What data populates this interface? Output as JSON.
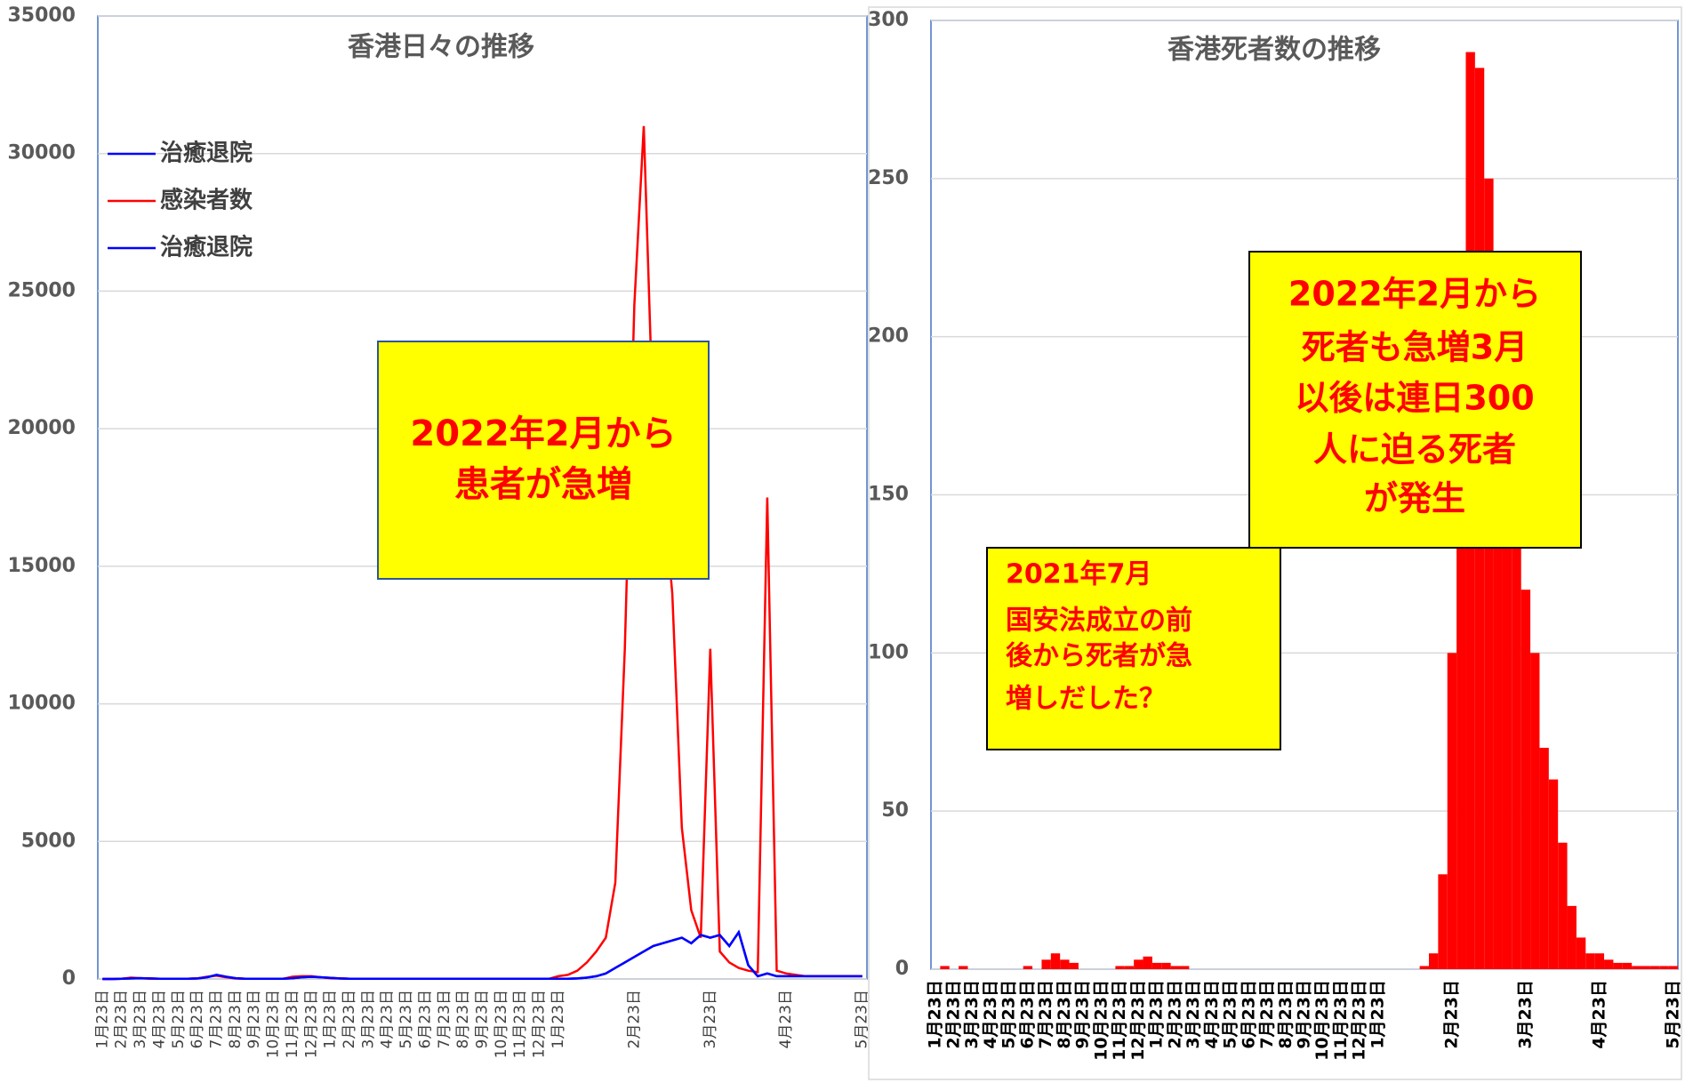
{
  "chart_data": [
    {
      "type": "line",
      "title": "香港日々の推移",
      "categories": [
        "1月23日",
        null,
        "2月23日",
        null,
        "3月23日",
        null,
        "4月23日",
        null,
        "5月23日",
        null,
        "6月23日",
        null,
        "7月23日",
        null,
        "8月23日",
        null,
        "9月23日",
        null,
        "10月23日",
        null,
        "11月23日",
        null,
        "12月23日",
        null,
        "1月23日",
        null,
        "2月23日",
        null,
        "3月23日",
        null,
        "4月23日",
        null,
        "5月23日",
        null,
        "6月23日",
        null,
        "7月23日",
        null,
        "8月23日",
        null,
        "9月23日",
        null,
        "10月23日",
        null,
        "11月23日",
        null,
        "12月23日",
        null,
        "1月23日",
        null,
        null,
        null,
        null,
        null,
        null,
        null,
        "2月23日",
        null,
        null,
        null,
        null,
        null,
        null,
        null,
        "3月23日",
        null,
        null,
        null,
        null,
        null,
        null,
        null,
        "4月23日",
        null,
        null,
        null,
        null,
        null,
        null,
        null,
        "5月23日"
      ],
      "series": [
        {
          "name": "治癒退院",
          "color": "#0000ff",
          "values": [
            0,
            0,
            10,
            20,
            30,
            20,
            10,
            10,
            10,
            10,
            20,
            60,
            150,
            80,
            30,
            10,
            5,
            5,
            5,
            5,
            30,
            60,
            80,
            60,
            40,
            20,
            10,
            5,
            5,
            5,
            5,
            5,
            5,
            5,
            5,
            5,
            5,
            5,
            5,
            5,
            5,
            5,
            5,
            5,
            5,
            5,
            5,
            5,
            10,
            10,
            20,
            50,
            100,
            200,
            400,
            600,
            800,
            1000,
            1200,
            1300,
            1400,
            1500,
            1300,
            1600,
            1500,
            1600,
            1200,
            1700,
            500,
            100,
            200,
            100,
            100,
            100,
            100,
            100,
            100,
            100,
            100,
            100,
            100
          ]
        },
        {
          "name": "感染者数",
          "color": "#ff0000",
          "values": [
            0,
            0,
            10,
            50,
            30,
            10,
            5,
            5,
            5,
            5,
            20,
            80,
            120,
            60,
            20,
            10,
            5,
            5,
            5,
            5,
            80,
            100,
            100,
            60,
            30,
            20,
            10,
            5,
            5,
            5,
            5,
            5,
            5,
            5,
            5,
            5,
            5,
            5,
            5,
            5,
            5,
            5,
            5,
            5,
            5,
            5,
            5,
            5,
            100,
            150,
            300,
            600,
            1000,
            1500,
            3500,
            12000,
            24500,
            31000,
            20000,
            18000,
            14000,
            5500,
            2500,
            1500,
            12000,
            1000,
            600,
            400,
            300,
            250,
            17500,
            300,
            200,
            150,
            100,
            100,
            100,
            100,
            100,
            100,
            100
          ]
        },
        {
          "name": "治癒退院",
          "color": "#0000ff",
          "values": [
            0,
            0,
            10,
            20,
            30,
            20,
            10,
            10,
            10,
            10,
            20,
            60,
            150,
            80,
            30,
            10,
            5,
            5,
            5,
            5,
            30,
            60,
            80,
            60,
            40,
            20,
            10,
            5,
            5,
            5,
            5,
            5,
            5,
            5,
            5,
            5,
            5,
            5,
            5,
            5,
            5,
            5,
            5,
            5,
            5,
            5,
            5,
            5,
            10,
            10,
            20,
            50,
            100,
            200,
            400,
            600,
            800,
            1000,
            1200,
            1300,
            1400,
            1500,
            1300,
            1600,
            1500,
            1600,
            1200,
            1700,
            500,
            100,
            200,
            100,
            100,
            100,
            100,
            100,
            100,
            100,
            100,
            100,
            100
          ]
        }
      ],
      "ylim": [
        0,
        35000
      ],
      "yticks": [
        0,
        5000,
        10000,
        15000,
        20000,
        25000,
        30000,
        35000
      ],
      "grid": true,
      "annotations": [
        {
          "lines": [
            "2022年2月から",
            "患者が急増"
          ]
        }
      ]
    },
    {
      "type": "bar",
      "title": "香港死者数の推移",
      "categories": [
        "1月23日",
        null,
        "2月23日",
        null,
        "3月23日",
        null,
        "4月23日",
        null,
        "5月23日",
        null,
        "6月23日",
        null,
        "7月23日",
        null,
        "8月23日",
        null,
        "9月23日",
        null,
        "10月23日",
        null,
        "11月23日",
        null,
        "12月23日",
        null,
        "1月23日",
        null,
        "2月23日",
        null,
        "3月23日",
        null,
        "4月23日",
        null,
        "5月23日",
        null,
        "6月23日",
        null,
        "7月23日",
        null,
        "8月23日",
        null,
        "9月23日",
        null,
        "10月23日",
        null,
        "11月23日",
        null,
        "12月23日",
        null,
        "1月23日",
        null,
        null,
        null,
        null,
        null,
        null,
        null,
        "2月23日",
        null,
        null,
        null,
        null,
        null,
        null,
        null,
        "3月23日",
        null,
        null,
        null,
        null,
        null,
        null,
        null,
        "4月23日",
        null,
        null,
        null,
        null,
        null,
        null,
        null,
        "5月23日"
      ],
      "values": [
        0,
        1,
        0,
        1,
        0,
        0,
        0,
        0,
        0,
        0,
        1,
        0,
        3,
        5,
        3,
        2,
        0,
        0,
        0,
        0,
        1,
        1,
        3,
        4,
        2,
        2,
        1,
        1,
        0,
        0,
        0,
        0,
        0,
        0,
        0,
        0,
        0,
        0,
        0,
        0,
        0,
        0,
        0,
        0,
        0,
        0,
        0,
        0,
        0,
        0,
        0,
        0,
        0,
        1,
        5,
        30,
        100,
        200,
        290,
        285,
        250,
        220,
        180,
        150,
        120,
        100,
        70,
        60,
        40,
        20,
        10,
        5,
        5,
        3,
        2,
        2,
        1,
        1,
        1,
        1,
        1
      ],
      "color": "#ff0000",
      "ylim": [
        0,
        300
      ],
      "yticks": [
        0,
        50,
        100,
        150,
        200,
        250,
        300
      ],
      "grid": true,
      "annotations": [
        {
          "lines": [
            "2022年2月から",
            "死者も急増3月",
            "以後は連日300",
            "人に迫る死者",
            "が発生"
          ]
        },
        {
          "lines": [
            "2021年7月",
            "国安法成立の前",
            "後から死者が急",
            "増しだした？"
          ]
        }
      ]
    }
  ]
}
